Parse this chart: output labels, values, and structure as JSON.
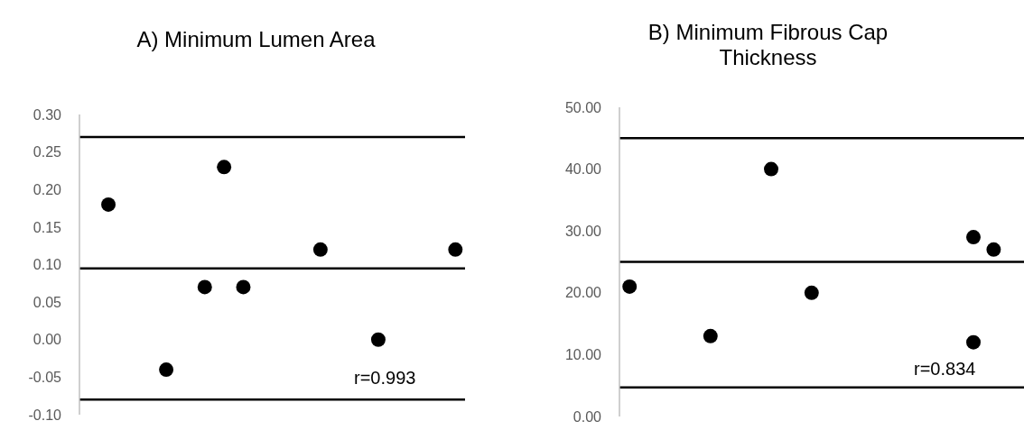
{
  "chart_data": [
    {
      "type": "scatter",
      "title": "A) Minimum Lumen Area",
      "categories": [
        null,
        null,
        null,
        null,
        null,
        null,
        null,
        null,
        null,
        null,
        null,
        null,
        null,
        null,
        null,
        null,
        null,
        null,
        null,
        null
      ],
      "series": [
        {
          "color": "#000000",
          "values": [
            null,
            0.18,
            null,
            null,
            -0.04,
            null,
            0.07,
            0.23,
            0.07,
            null,
            null,
            null,
            0.12,
            null,
            null,
            0.0,
            null,
            null,
            null,
            0.12
          ]
        }
      ],
      "ylim": [
        -0.1,
        0.3
      ],
      "yticks": [
        {
          "value": -0.1,
          "label": "-0.10"
        },
        {
          "value": -0.05,
          "label": "-0.05"
        },
        {
          "value": 0,
          "label": "0.00"
        },
        {
          "value": 0.05,
          "label": "0.05"
        },
        {
          "value": 0.1,
          "label": "0.10"
        },
        {
          "value": 0.15,
          "label": "0.15"
        },
        {
          "value": 0.2,
          "label": "0.20"
        },
        {
          "value": 0.25,
          "label": "0.25"
        },
        {
          "value": 0.3,
          "label": "0.30"
        }
      ],
      "ref_lines": [
        {
          "axis": "y",
          "value": 0.27,
          "color": "#000000"
        },
        {
          "axis": "y",
          "value": 0.095,
          "color": "#000000"
        },
        {
          "axis": "y",
          "value": -0.08,
          "color": "#000000"
        }
      ],
      "annotations": [
        "r=0.993"
      ],
      "tick_labels": "y",
      "grid": false,
      "legend": false,
      "marker": "circle"
    },
    {
      "type": "scatter",
      "title": "B) Minimum Fibrous Cap Thickness",
      "categories": [
        null,
        null,
        null,
        null,
        null,
        null,
        null,
        null,
        null,
        null,
        null,
        null,
        null,
        null,
        null,
        null,
        null,
        null,
        null,
        null
      ],
      "series": [
        {
          "color": "#000000",
          "values": [
            21,
            null,
            null,
            null,
            13,
            null,
            null,
            40,
            null,
            20,
            null,
            null,
            null,
            null,
            null,
            null,
            null,
            12,
            27,
            null
          ]
        },
        {
          "color": "#000000",
          "values": [
            null,
            null,
            null,
            null,
            null,
            null,
            null,
            null,
            null,
            null,
            null,
            null,
            null,
            null,
            null,
            null,
            null,
            29,
            null,
            null
          ]
        }
      ],
      "ylim": [
        0,
        50
      ],
      "yticks": [
        {
          "value": 0,
          "label": "0.00"
        },
        {
          "value": 10,
          "label": "10.00"
        },
        {
          "value": 20,
          "label": "20.00"
        },
        {
          "value": 30,
          "label": "30.00"
        },
        {
          "value": 40,
          "label": "40.00"
        },
        {
          "value": 50,
          "label": "50.00"
        }
      ],
      "ref_lines": [
        {
          "axis": "y",
          "value": 45,
          "color": "#000000"
        },
        {
          "axis": "y",
          "value": 25,
          "color": "#000000"
        },
        {
          "axis": "y",
          "value": 4.7,
          "color": "#000000"
        }
      ],
      "annotations": [
        "r=0.834"
      ],
      "tick_labels": "y",
      "grid": false,
      "legend": false,
      "marker": "circle"
    }
  ]
}
